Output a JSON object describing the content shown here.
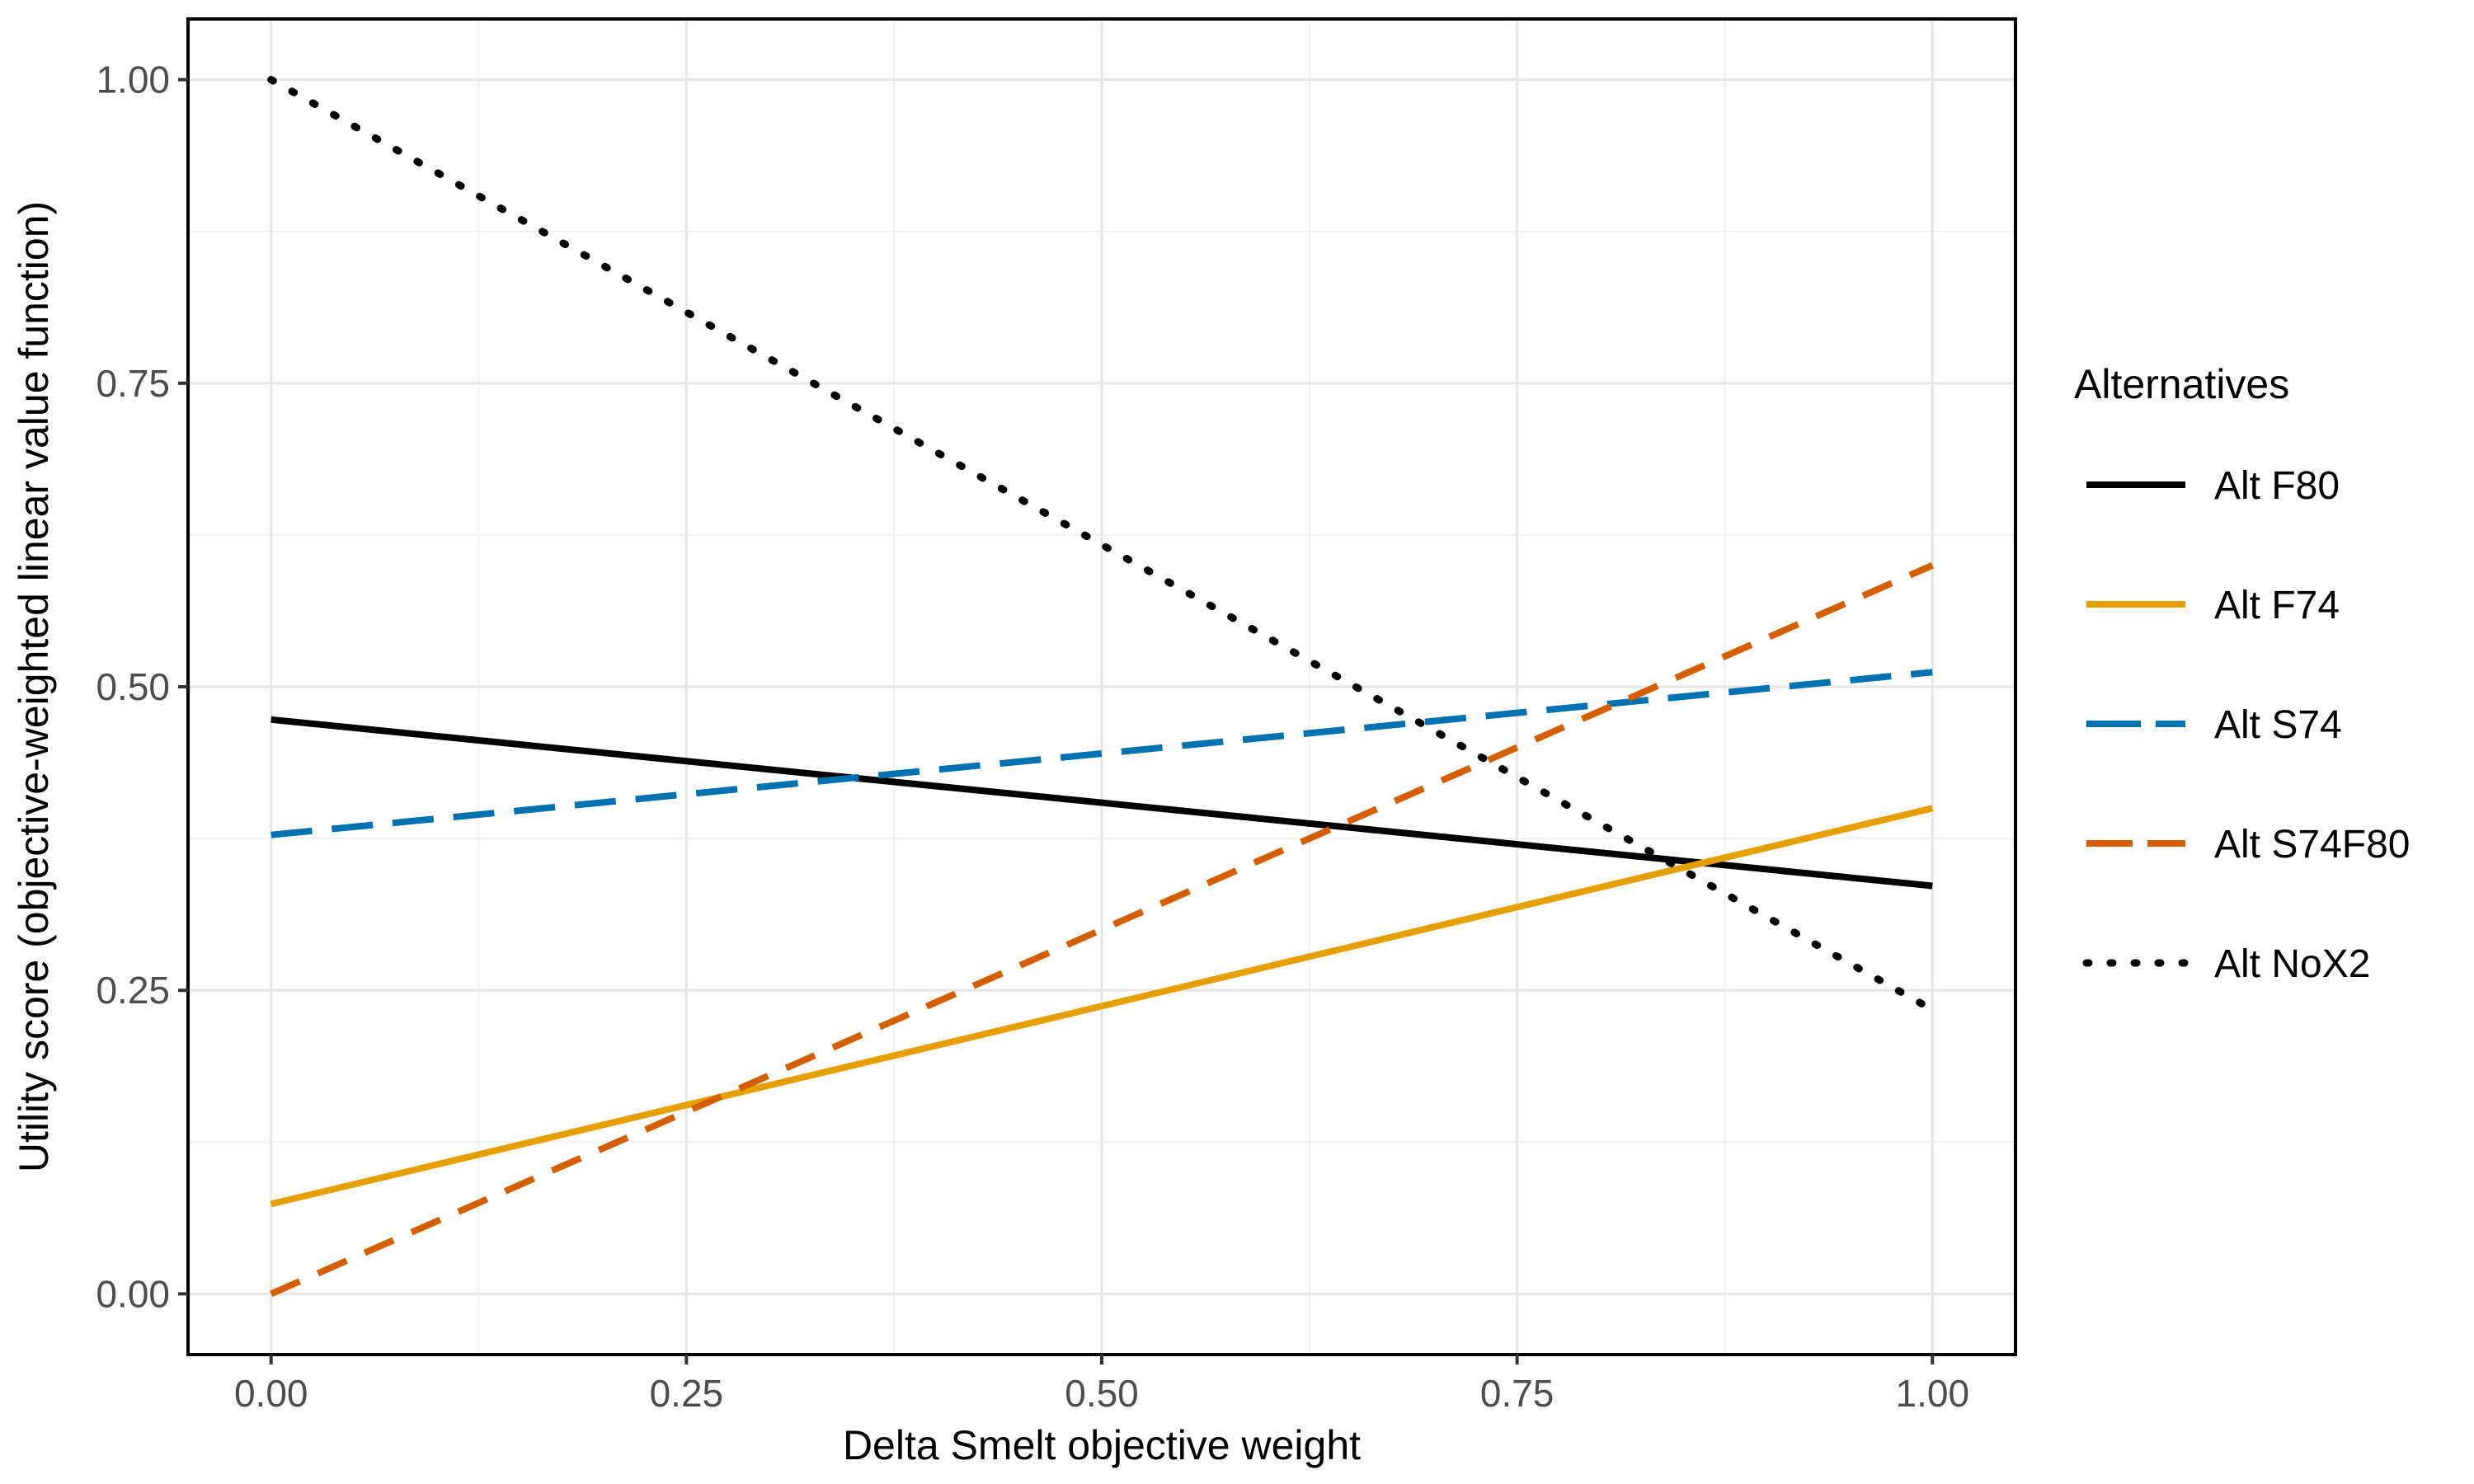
{
  "chart_data": {
    "type": "line",
    "xlabel": "Delta Smelt objective weight",
    "ylabel": "Utility score (objective-weighted linear value function)",
    "xlim": [
      -0.05,
      1.05
    ],
    "ylim": [
      -0.05,
      1.05
    ],
    "x_ticks": [
      "0.00",
      "0.25",
      "0.50",
      "0.75",
      "1.00"
    ],
    "y_ticks": [
      "0.00",
      "0.25",
      "0.50",
      "0.75",
      "1.00"
    ],
    "grid": true,
    "legend": {
      "title": "Alternatives",
      "placement": "right"
    },
    "series": [
      {
        "name": "Alt F80",
        "x": [
          0,
          1
        ],
        "values": [
          0.473,
          0.336
        ],
        "color": "#000000",
        "dash": "solid"
      },
      {
        "name": "Alt F74",
        "x": [
          0,
          1
        ],
        "values": [
          0.074,
          0.4
        ],
        "color": "#E69F00",
        "dash": "solid"
      },
      {
        "name": "Alt S74",
        "x": [
          0,
          1
        ],
        "values": [
          0.378,
          0.512
        ],
        "color": "#0072B2",
        "dash": "longdash"
      },
      {
        "name": "Alt S74F80",
        "x": [
          0,
          1
        ],
        "values": [
          0.0,
          0.6
        ],
        "color": "#D55E00",
        "dash": "dash"
      },
      {
        "name": "Alt NoX2",
        "x": [
          0,
          1
        ],
        "values": [
          1.0,
          0.234
        ],
        "color": "#000000",
        "dash": "dotted"
      }
    ]
  }
}
